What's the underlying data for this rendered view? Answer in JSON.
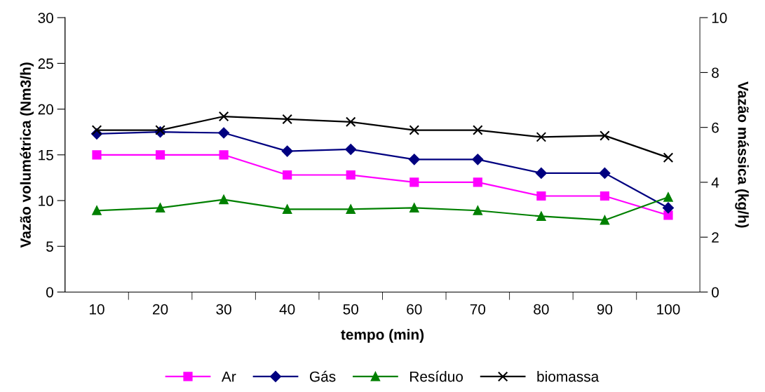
{
  "chart_data": {
    "type": "line",
    "xlabel": "tempo (min)",
    "ylabel": "Vazão volumétrica (Nm3/h)",
    "y2label": "Vazão mássica (kg/h)",
    "categories": [
      "10",
      "20",
      "30",
      "40",
      "50",
      "60",
      "70",
      "80",
      "90",
      "100"
    ],
    "series": [
      {
        "name": "Ar",
        "color": "#ff00ff",
        "marker": "square",
        "values": [
          15,
          15,
          15,
          12.8,
          12.8,
          12.0,
          12.0,
          10.5,
          10.5,
          8.4
        ]
      },
      {
        "name": "Gás",
        "color": "#000080",
        "marker": "diamond",
        "values": [
          17.3,
          17.5,
          17.4,
          15.4,
          15.6,
          14.5,
          14.5,
          13.0,
          13.0,
          9.2
        ]
      },
      {
        "name": "Resíduo",
        "color": "#008000",
        "marker": "triangle",
        "axis": "y2",
        "values": [
          2.97,
          3.07,
          3.37,
          3.02,
          3.02,
          3.07,
          2.97,
          2.76,
          2.62,
          3.46
        ]
      },
      {
        "name": "biomassa",
        "color": "#000000",
        "marker": "cross",
        "axis": "y2",
        "values": [
          5.9,
          5.9,
          6.4,
          6.3,
          6.2,
          5.9,
          5.9,
          5.65,
          5.7,
          4.9
        ]
      }
    ],
    "ylim": [
      0,
      30
    ],
    "yticks": [
      0,
      5,
      10,
      15,
      20,
      25,
      30
    ],
    "y2lim": [
      0,
      10
    ],
    "y2ticks": [
      0,
      2,
      4,
      6,
      8,
      10
    ],
    "grid": false,
    "legend": "bottom",
    "line_style": "solid"
  }
}
